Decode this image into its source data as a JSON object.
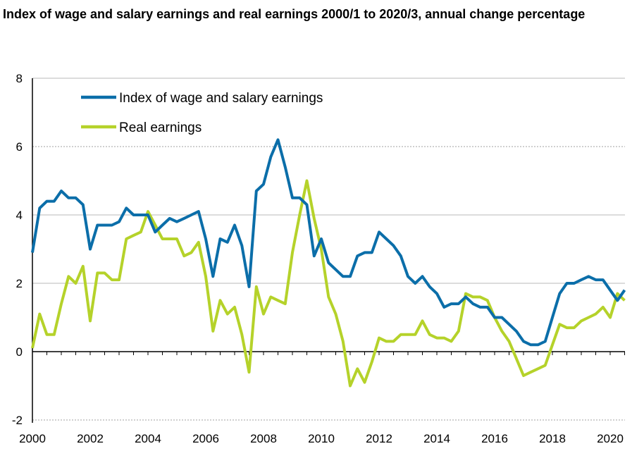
{
  "chart_data": {
    "type": "line",
    "title": "Index of wage and salary earnings and real earnings 2000/1 to 2020/3, annual change percentage",
    "xlabel": "",
    "ylabel": "",
    "x_start": 2000,
    "x_step_years": 0.25,
    "xlim": [
      2000,
      2020.5
    ],
    "ylim": [
      -2,
      8
    ],
    "yticks": [
      -2,
      0,
      2,
      4,
      6,
      8
    ],
    "xticks": [
      2000,
      2002,
      2004,
      2006,
      2008,
      2010,
      2012,
      2014,
      2016,
      2018,
      2020
    ],
    "grid": true,
    "legend_position": "top-left",
    "series": [
      {
        "name": "Index of wage and salary earnings",
        "color": "#0b6ea9",
        "values": [
          2.9,
          4.2,
          4.4,
          4.4,
          4.7,
          4.5,
          4.5,
          4.3,
          3.0,
          3.7,
          3.7,
          3.7,
          3.8,
          4.2,
          4.0,
          4.0,
          4.0,
          3.5,
          3.7,
          3.9,
          3.8,
          3.9,
          4.0,
          4.1,
          3.3,
          2.2,
          3.3,
          3.2,
          3.7,
          3.1,
          1.9,
          4.7,
          4.9,
          5.7,
          6.2,
          5.4,
          4.5,
          4.5,
          4.3,
          2.8,
          3.3,
          2.6,
          2.4,
          2.2,
          2.2,
          2.8,
          2.9,
          2.9,
          3.5,
          3.3,
          3.1,
          2.8,
          2.2,
          2.0,
          2.2,
          1.9,
          1.7,
          1.3,
          1.4,
          1.4,
          1.6,
          1.4,
          1.3,
          1.3,
          1.0,
          1.0,
          0.8,
          0.6,
          0.3,
          0.2,
          0.2,
          0.3,
          1.0,
          1.7,
          2.0,
          2.0,
          2.1,
          2.2,
          2.1,
          2.1,
          1.8,
          1.5,
          1.8
        ]
      },
      {
        "name": "Real earnings",
        "color": "#b5d22a",
        "values": [
          0.1,
          1.1,
          0.5,
          0.5,
          1.4,
          2.2,
          2.0,
          2.5,
          0.9,
          2.3,
          2.3,
          2.1,
          2.1,
          3.3,
          3.4,
          3.5,
          4.1,
          3.7,
          3.3,
          3.3,
          3.3,
          2.8,
          2.9,
          3.2,
          2.2,
          0.6,
          1.5,
          1.1,
          1.3,
          0.5,
          -0.6,
          1.9,
          1.1,
          1.6,
          1.5,
          1.4,
          2.9,
          4.0,
          5.0,
          3.9,
          3.0,
          1.6,
          1.1,
          0.3,
          -1.0,
          -0.5,
          -0.9,
          -0.3,
          0.4,
          0.3,
          0.3,
          0.5,
          0.5,
          0.5,
          0.9,
          0.5,
          0.4,
          0.4,
          0.3,
          0.6,
          1.7,
          1.6,
          1.6,
          1.5,
          1.0,
          0.6,
          0.3,
          -0.2,
          -0.7,
          -0.6,
          -0.5,
          -0.4,
          0.2,
          0.8,
          0.7,
          0.7,
          0.9,
          1.0,
          1.1,
          1.3,
          1.0,
          1.7,
          1.5
        ]
      }
    ]
  }
}
